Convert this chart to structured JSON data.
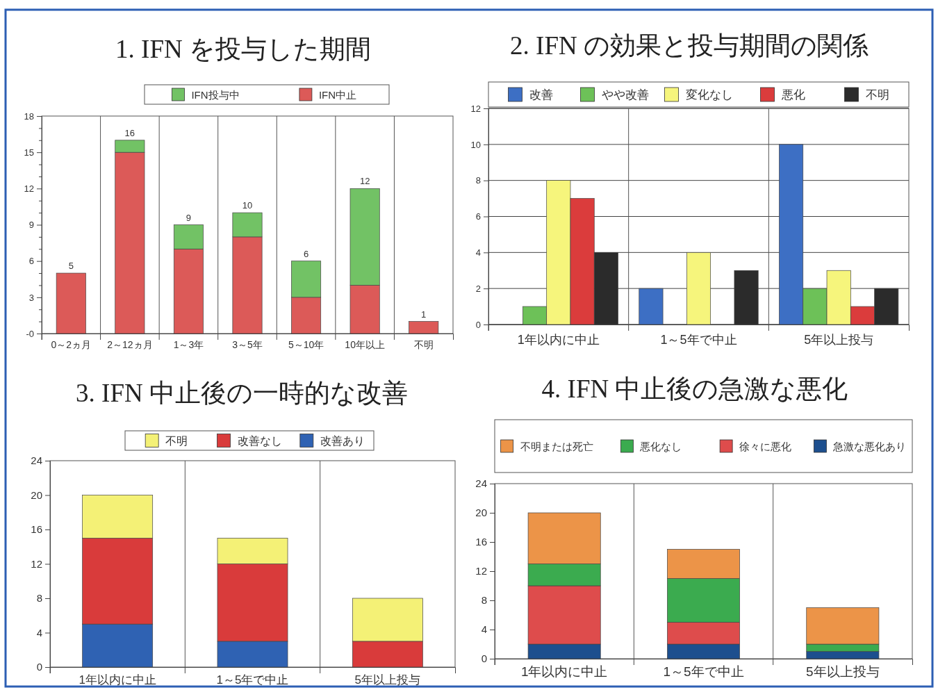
{
  "chart_data": [
    {
      "type": "bar",
      "title": "1. IFN を投与した期間",
      "categories": [
        "0～2ヵ月",
        "2～12ヵ月",
        "1～3年",
        "3～5年",
        "5～10年",
        "10年以上",
        "不明"
      ],
      "series": [
        {
          "name": "IFN中止",
          "color": "#dc5a58",
          "values": [
            5,
            15,
            7,
            8,
            3,
            4,
            1
          ]
        },
        {
          "name": "IFN投与中",
          "color": "#72c265",
          "values": [
            null,
            1,
            2,
            2,
            3,
            8,
            null
          ]
        }
      ],
      "stacked": true,
      "totals": [
        "5",
        "16",
        "9",
        "10",
        "6",
        "12",
        "1"
      ],
      "ylim": [
        0,
        18
      ],
      "yticks": [
        {
          "value": 0,
          "label": "-0"
        },
        {
          "value": 1,
          "label": null
        },
        {
          "value": 2,
          "label": null
        },
        3,
        {
          "value": 4,
          "label": null
        },
        {
          "value": 5,
          "label": null
        },
        6,
        {
          "value": 7,
          "label": null
        },
        {
          "value": 8,
          "label": null
        },
        9,
        {
          "value": 10,
          "label": null
        },
        {
          "value": 11,
          "label": null
        },
        12,
        {
          "value": 13,
          "label": null
        },
        {
          "value": 14,
          "label": null
        },
        15,
        {
          "value": 16,
          "label": null
        },
        {
          "value": 17,
          "label": null
        },
        18
      ],
      "grid": "x",
      "legend": "top"
    },
    {
      "type": "bar",
      "title": "2. IFN の効果と投与期間の関係",
      "categories": [
        "1年以内に中止",
        "1～5年で中止",
        "5年以上投与"
      ],
      "series": [
        {
          "name": "改善",
          "color": "#3d6fc4",
          "values": [
            null,
            2,
            10
          ]
        },
        {
          "name": "やや改善",
          "color": "#6dc158",
          "values": [
            1,
            null,
            2
          ]
        },
        {
          "name": "変化なし",
          "color": "#f6f57c",
          "values": [
            8,
            4,
            3
          ]
        },
        {
          "name": "悪化",
          "color": "#db3c3c",
          "values": [
            7,
            null,
            1
          ]
        },
        {
          "name": "不明",
          "color": "#2b2b2b",
          "values": [
            4,
            3,
            2
          ]
        }
      ],
      "ylim": [
        0,
        12
      ],
      "yticks": [
        0,
        2,
        4,
        6,
        8,
        10,
        12
      ],
      "grid": true,
      "legend": "top"
    },
    {
      "type": "bar",
      "title": "3. IFN 中止後の一時的な改善",
      "categories": [
        "1年以内に中止",
        "1～5年で中止",
        "5年以上投与"
      ],
      "series": [
        {
          "name": "改善あり",
          "color": "#2f62b3",
          "values": [
            5,
            3,
            null
          ]
        },
        {
          "name": "改善なし",
          "color": "#d93b3b",
          "values": [
            10,
            9,
            3
          ]
        },
        {
          "name": "不明",
          "color": "#f4f176",
          "values": [
            5,
            3,
            5
          ]
        }
      ],
      "stacked": true,
      "ylim": [
        0,
        24
      ],
      "yticks": [
        0,
        4,
        8,
        12,
        16,
        20,
        24
      ],
      "grid": "x",
      "legend": "top"
    },
    {
      "type": "bar",
      "title": "4. IFN 中止後の急激な悪化",
      "categories": [
        "1年以内に中止",
        "1～5年で中止",
        "5年以上投与"
      ],
      "series": [
        {
          "name": "急激な悪化あり",
          "color": "#1d4f8e",
          "values": [
            2,
            2,
            1
          ]
        },
        {
          "name": "徐々に悪化",
          "color": "#de4c4c",
          "values": [
            8,
            3,
            null
          ]
        },
        {
          "name": "悪化なし",
          "color": "#3bab4f",
          "values": [
            3,
            6,
            1
          ]
        },
        {
          "name": "不明または死亡",
          "color": "#ec9448",
          "values": [
            7,
            4,
            5
          ]
        }
      ],
      "stacked": true,
      "ylim": [
        0,
        24
      ],
      "yticks": [
        0,
        4,
        8,
        12,
        16,
        20,
        24
      ],
      "grid": "x",
      "legend": "top"
    }
  ]
}
